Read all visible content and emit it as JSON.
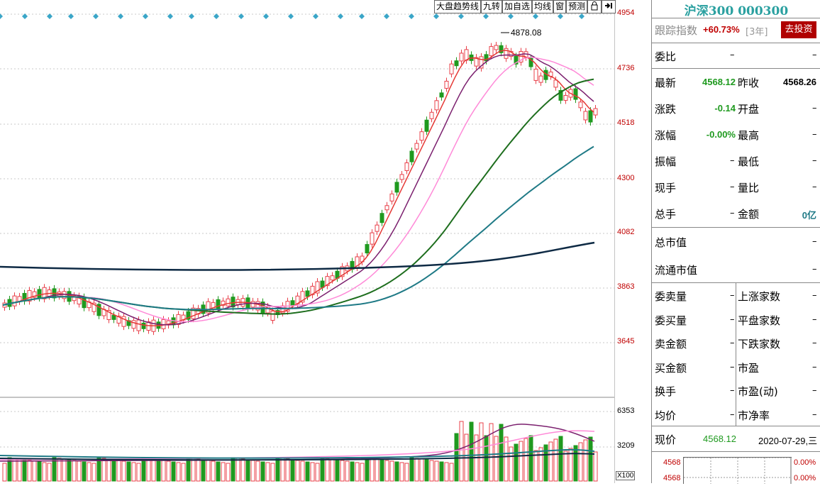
{
  "toolbar": {
    "trend_label": "大盘趋势线",
    "nine_label": "九转",
    "add_watch_label": "加自选",
    "ma_label": "均线",
    "window_label": "窗",
    "forecast_label": "预测",
    "lock_icon": "lock-icon",
    "arrow_icon": "arrow-right-bar-icon"
  },
  "chart": {
    "high_marker": "4878.08",
    "price_ticks": [
      "4954",
      "4736",
      "4518",
      "4300",
      "4082",
      "3863",
      "3645"
    ],
    "volume_ticks": [
      "6353",
      "3209"
    ],
    "volume_unit": "X100"
  },
  "colors": {
    "up": "#e8404a",
    "down": "#1f9a1f",
    "ma5": "#e53935",
    "ma10": "#7b1f6e",
    "ma20": "#ff8ad8",
    "ma60": "#1e6e1e",
    "ma120": "#1f7a86",
    "ma250": "#0e2a44",
    "diamond": "#3aa6c8"
  },
  "panel": {
    "title": "沪深300 000300",
    "track_label": "跟踪指数",
    "track_value": "+60.73%",
    "track_period": "[3年]",
    "invest_button": "去投资",
    "rows": {
      "weibi": "委比",
      "weibi_val": "–",
      "weibi_val2": "–",
      "latest": "最新",
      "latest_val": "4568.12",
      "prev_close": "昨收",
      "prev_close_val": "4568.26",
      "change": "涨跌",
      "change_val": "-0.14",
      "open": "开盘",
      "open_val": "–",
      "pct": "涨幅",
      "pct_val": "-0.00%",
      "high": "最高",
      "high_val": "–",
      "amp": "振幅",
      "amp_val": "–",
      "low": "最低",
      "low_val": "–",
      "now_hand": "现手",
      "now_hand_val": "–",
      "vol_ratio": "量比",
      "vol_ratio_val": "–",
      "total_hand": "总手",
      "total_hand_val": "–",
      "amount": "金额",
      "amount_val": "0亿",
      "total_mv": "总市值",
      "total_mv_val": "–",
      "float_mv": "流通市值",
      "float_mv_val": "–",
      "sell_vol": "委卖量",
      "sell_vol_val": "–",
      "up_count": "上涨家数",
      "up_count_val": "–",
      "buy_vol": "委买量",
      "buy_vol_val": "–",
      "flat_count": "平盘家数",
      "flat_count_val": "–",
      "sell_amt": "卖金额",
      "sell_amt_val": "–",
      "down_count": "下跌家数",
      "down_count_val": "–",
      "buy_amt": "买金额",
      "buy_amt_val": "–",
      "pe": "市盈",
      "pe_val": "–",
      "turnover": "换手",
      "turnover_val": "–",
      "pe_dyn": "市盈(动)",
      "pe_dyn_val": "–",
      "avg_price": "均价",
      "avg_price_val": "–",
      "pb": "市净率",
      "pb_val": "–"
    },
    "now_price_label": "现价",
    "now_price_val": "4568.12",
    "date": "2020-07-29,三",
    "mini_top_left": "4568",
    "mini_top_right": "0.00%",
    "mini_bottom_left": "4568",
    "mini_bottom_right": "0.00%"
  }
}
